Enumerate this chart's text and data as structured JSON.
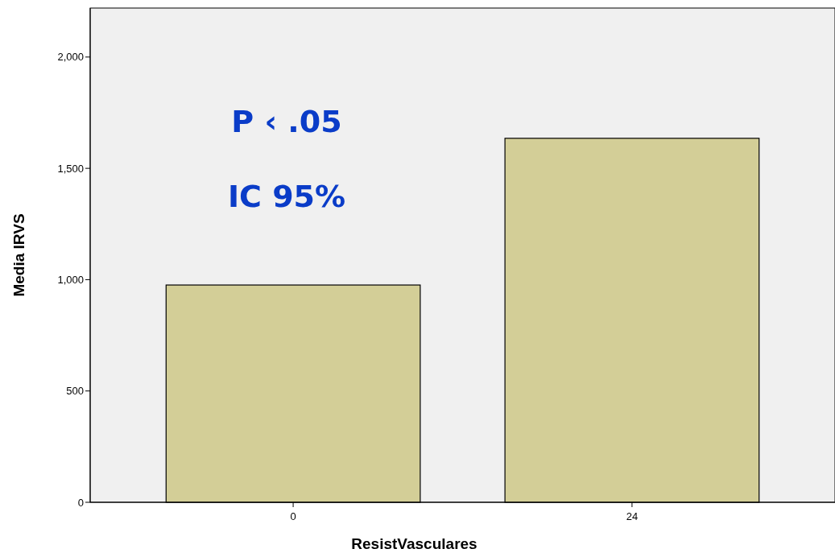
{
  "chart_data": {
    "type": "bar",
    "xlabel": "ResistVasculares",
    "ylabel": "Media IRVS",
    "categories": [
      "0",
      "24"
    ],
    "series": [
      {
        "color": "#d3ce97",
        "values": [
          976,
          1635
        ]
      }
    ],
    "ylim": [
      0,
      2220
    ],
    "yticks": [
      0,
      500,
      {
        "value": 1000,
        "label": "1,000"
      },
      {
        "value": 1500,
        "label": "1,500"
      },
      {
        "value": 2000,
        "label": "2,000"
      }
    ],
    "grid": false,
    "annotations": [
      "P ‹ .05",
      "IC 95%"
    ]
  }
}
